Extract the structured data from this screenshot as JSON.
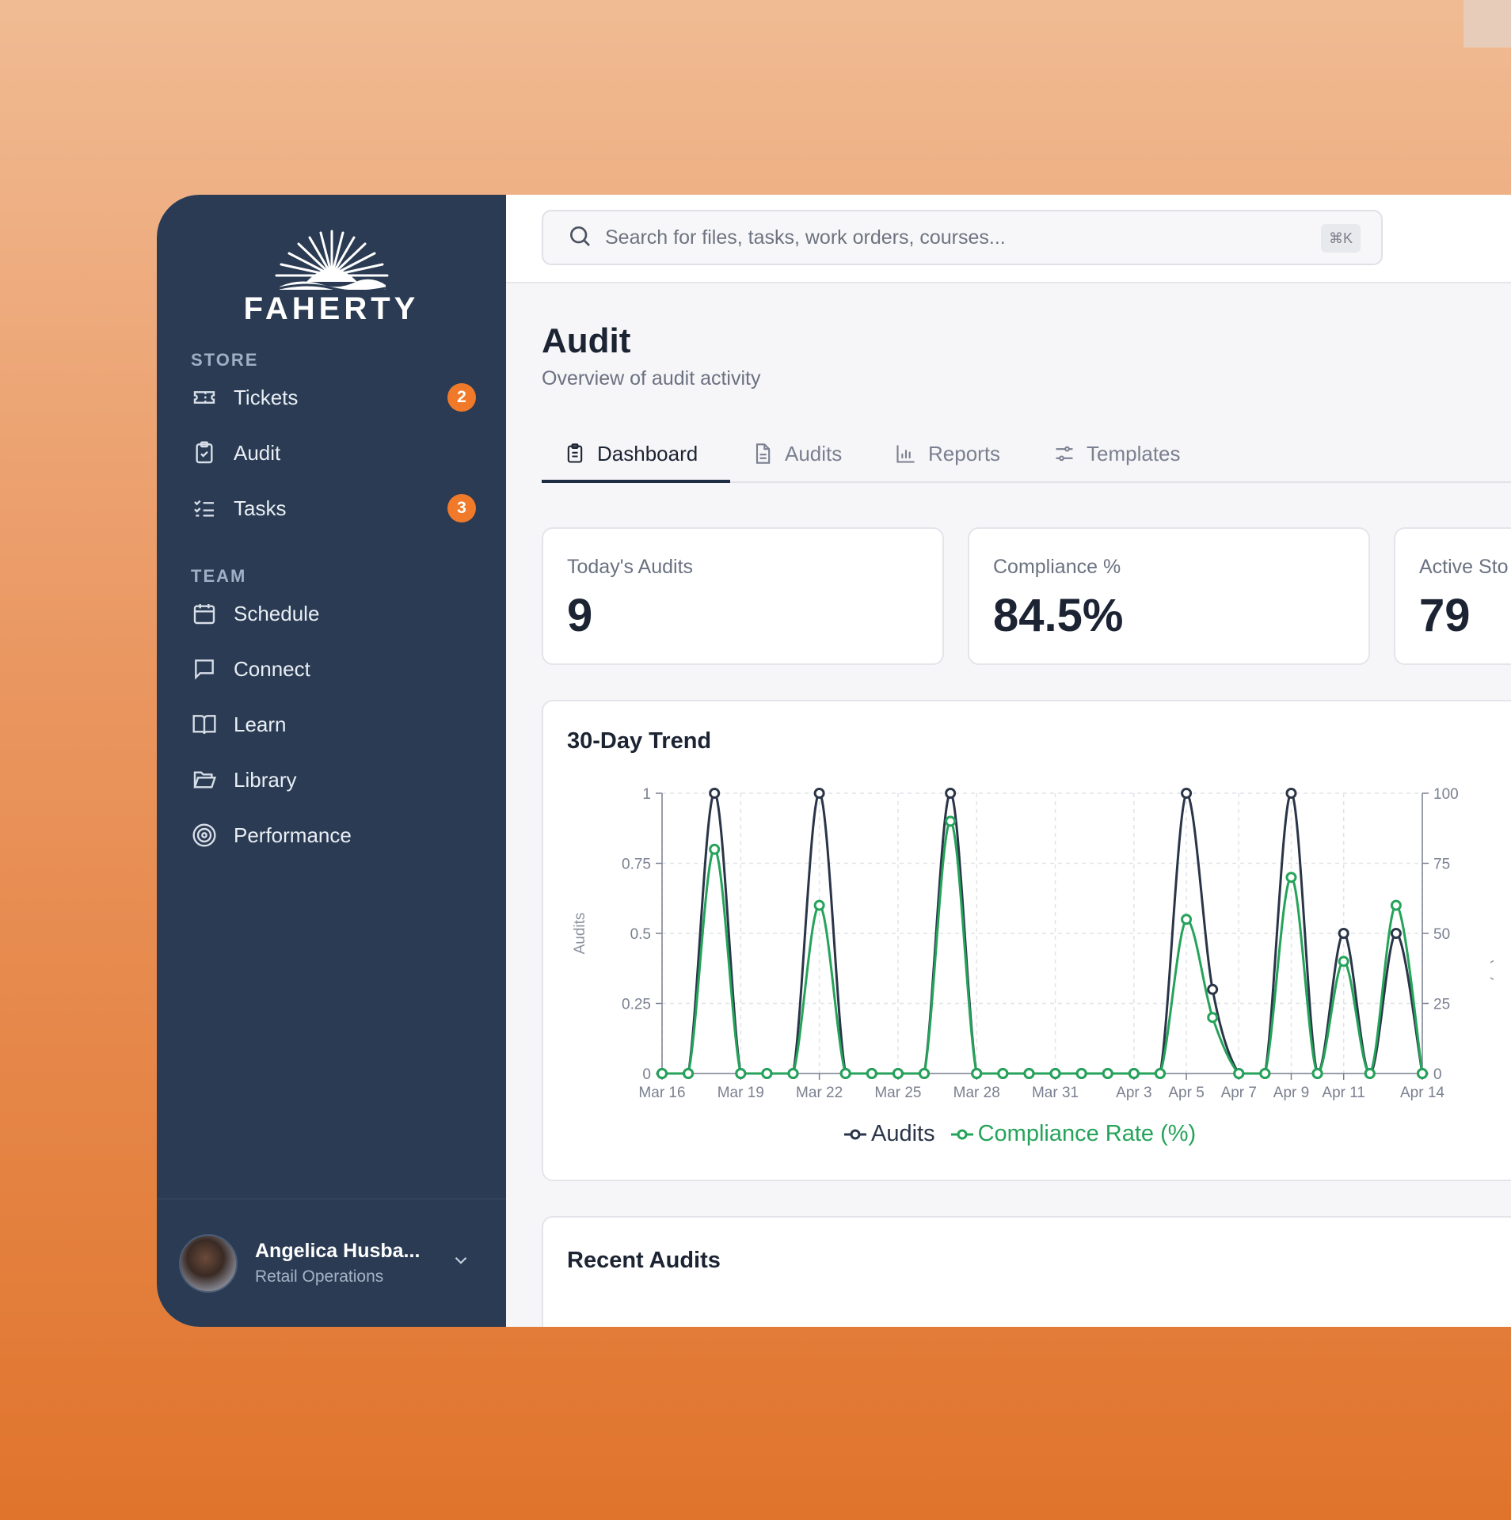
{
  "brand": {
    "name": "FAHERTY"
  },
  "sidebar": {
    "sections": [
      {
        "label": "STORE"
      },
      {
        "label": "TEAM"
      }
    ],
    "items": [
      {
        "label": "Tickets",
        "icon": "ticket-icon",
        "badge": "2"
      },
      {
        "label": "Audit",
        "icon": "clipboard-check-icon"
      },
      {
        "label": "Tasks",
        "icon": "list-checks-icon",
        "badge": "3"
      },
      {
        "label": "Schedule",
        "icon": "calendar-icon"
      },
      {
        "label": "Connect",
        "icon": "message-icon"
      },
      {
        "label": "Learn",
        "icon": "book-open-icon"
      },
      {
        "label": "Library",
        "icon": "folder-open-icon"
      },
      {
        "label": "Performance",
        "icon": "target-icon"
      }
    ],
    "user": {
      "name": "Angelica Husba...",
      "role": "Retail Operations"
    }
  },
  "search": {
    "placeholder": "Search for files, tasks, work orders, courses...",
    "shortcut": "⌘K"
  },
  "page": {
    "title": "Audit",
    "subtitle": "Overview of audit activity"
  },
  "tabs": [
    {
      "label": "Dashboard",
      "icon": "clipboard-icon",
      "active": true
    },
    {
      "label": "Audits",
      "icon": "file-text-icon"
    },
    {
      "label": "Reports",
      "icon": "bar-chart-icon"
    },
    {
      "label": "Templates",
      "icon": "sliders-icon"
    }
  ],
  "stats": [
    {
      "label": "Today's Audits",
      "value": "9"
    },
    {
      "label": "Compliance %",
      "value": "84.5%"
    },
    {
      "label": "Active Sto",
      "value": "79"
    }
  ],
  "colors": {
    "audits": "#2a3548",
    "compliance": "#25a35a",
    "accent": "#f07a2a",
    "sidebar": "#2a3b53"
  },
  "chart_data": {
    "type": "line",
    "title": "30-Day Trend",
    "ylabel": "Audits",
    "y2label": "Pass Rate (%)",
    "ylim": [
      0,
      1
    ],
    "y2lim": [
      0,
      100
    ],
    "yticks": [
      "0",
      "0.25",
      "0.5",
      "0.75",
      "1"
    ],
    "y2ticks": [
      "0",
      "25",
      "50",
      "75",
      "100"
    ],
    "xticklabels": [
      "Mar 16",
      "Mar 19",
      "Mar 22",
      "Mar 25",
      "Mar 28",
      "Mar 31",
      "Apr 3",
      "Apr 5",
      "Apr 7",
      "Apr 9",
      "Apr 11",
      "Apr 14"
    ],
    "x": [
      "Mar 16",
      "Mar 17",
      "Mar 18",
      "Mar 19",
      "Mar 20",
      "Mar 21",
      "Mar 22",
      "Mar 23",
      "Mar 24",
      "Mar 25",
      "Mar 26",
      "Mar 27",
      "Mar 28",
      "Mar 29",
      "Mar 30",
      "Mar 31",
      "Apr 1",
      "Apr 2",
      "Apr 3",
      "Apr 4",
      "Apr 5",
      "Apr 6",
      "Apr 7",
      "Apr 8",
      "Apr 9",
      "Apr 10",
      "Apr 11",
      "Apr 12",
      "Apr 13",
      "Apr 14"
    ],
    "series": [
      {
        "name": "Audits",
        "axis": "left",
        "values": [
          0,
          0,
          1,
          0,
          0,
          0,
          1,
          0,
          0,
          0,
          0,
          1,
          0,
          0,
          0,
          0,
          0,
          0,
          0,
          0,
          1,
          0.3,
          0,
          0,
          1,
          0,
          0.5,
          0,
          0.5,
          0
        ]
      },
      {
        "name": "Compliance Rate (%)",
        "axis": "right",
        "values": [
          0,
          0,
          80,
          0,
          0,
          0,
          60,
          0,
          0,
          0,
          0,
          90,
          0,
          0,
          0,
          0,
          0,
          0,
          0,
          0,
          55,
          20,
          0,
          0,
          70,
          0,
          40,
          0,
          60,
          0
        ]
      }
    ],
    "legend": "bottom",
    "grid": true
  },
  "recent": {
    "title": "Recent Audits"
  }
}
